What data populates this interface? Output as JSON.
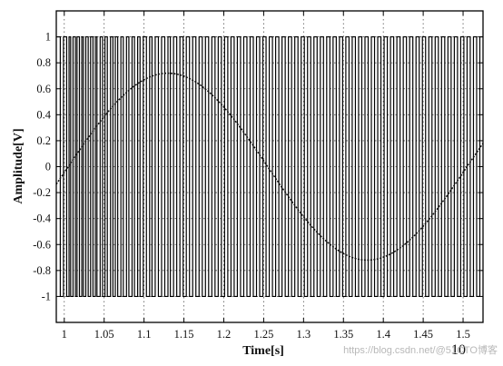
{
  "chart_data": {
    "type": "line",
    "title": "",
    "xlabel": "Time[s]",
    "ylabel": "Amplitude[V]",
    "x_exponent_label": "10",
    "xlim": [
      0.99,
      1.525
    ],
    "ylim": [
      -1.2,
      1.2
    ],
    "grid": true,
    "x_ticks": [
      1,
      1.05,
      1.1,
      1.15,
      1.2,
      1.25,
      1.3,
      1.35,
      1.4,
      1.45,
      1.5
    ],
    "x_tick_labels": [
      "1",
      "1.05",
      "1.1",
      "1.15",
      "1.2",
      "1.25",
      "1.3",
      "1.35",
      "1.4",
      "1.45",
      "1.5"
    ],
    "y_ticks": [
      1,
      0.8,
      0.6,
      0.4,
      0.2,
      0,
      -0.2,
      -0.4,
      -0.6,
      -0.8,
      -1
    ],
    "y_tick_labels": [
      "1",
      "0.8",
      "0.6",
      "0.4",
      "0.2",
      "0",
      "-0.2",
      "-0.4",
      "-0.6",
      "-0.8",
      "-1"
    ],
    "series": [
      {
        "style": "dotted sine",
        "amplitude": 0.72,
        "period": 0.5,
        "phase_x": 1.005,
        "x_range": [
          0.99,
          1.525
        ]
      },
      {
        "style": "square pulse train",
        "high": 1,
        "low": -1,
        "edges": [
          0.995,
          0.999,
          1.003,
          1.006,
          1.008,
          1.011,
          1.014,
          1.016,
          1.019,
          1.022,
          1.024,
          1.027,
          1.03,
          1.033,
          1.036,
          1.039,
          1.041,
          1.045,
          1.048,
          1.051,
          1.054,
          1.058,
          1.061,
          1.064,
          1.067,
          1.071,
          1.074,
          1.078,
          1.081,
          1.085,
          1.088,
          1.092,
          1.095,
          1.099,
          1.103,
          1.107,
          1.11,
          1.114,
          1.118,
          1.122,
          1.126,
          1.13,
          1.133,
          1.137,
          1.141,
          1.145,
          1.149,
          1.153,
          1.157,
          1.161,
          1.165,
          1.169,
          1.173,
          1.177,
          1.181,
          1.185,
          1.189,
          1.193,
          1.197,
          1.201,
          1.205,
          1.209,
          1.213,
          1.217,
          1.221,
          1.225,
          1.229,
          1.233,
          1.237,
          1.241,
          1.245,
          1.249,
          1.253,
          1.257,
          1.261,
          1.265,
          1.269,
          1.273,
          1.277,
          1.281,
          1.285,
          1.289,
          1.293,
          1.297,
          1.301,
          1.305,
          1.309,
          1.313,
          1.317,
          1.321,
          1.325,
          1.329,
          1.333,
          1.337,
          1.341,
          1.345,
          1.349,
          1.353,
          1.357,
          1.361,
          1.365,
          1.369,
          1.373,
          1.377,
          1.381,
          1.385,
          1.389,
          1.393,
          1.397,
          1.401,
          1.405,
          1.409,
          1.413,
          1.417,
          1.421,
          1.425,
          1.429,
          1.433,
          1.437,
          1.441,
          1.445,
          1.449,
          1.453,
          1.457,
          1.461,
          1.465,
          1.469,
          1.473,
          1.477,
          1.481,
          1.485,
          1.489,
          1.493,
          1.497,
          1.501,
          1.505,
          1.509,
          1.513,
          1.517,
          1.521
        ]
      }
    ]
  },
  "watermark": "https://blog.csdn.net/@51CTO博客"
}
